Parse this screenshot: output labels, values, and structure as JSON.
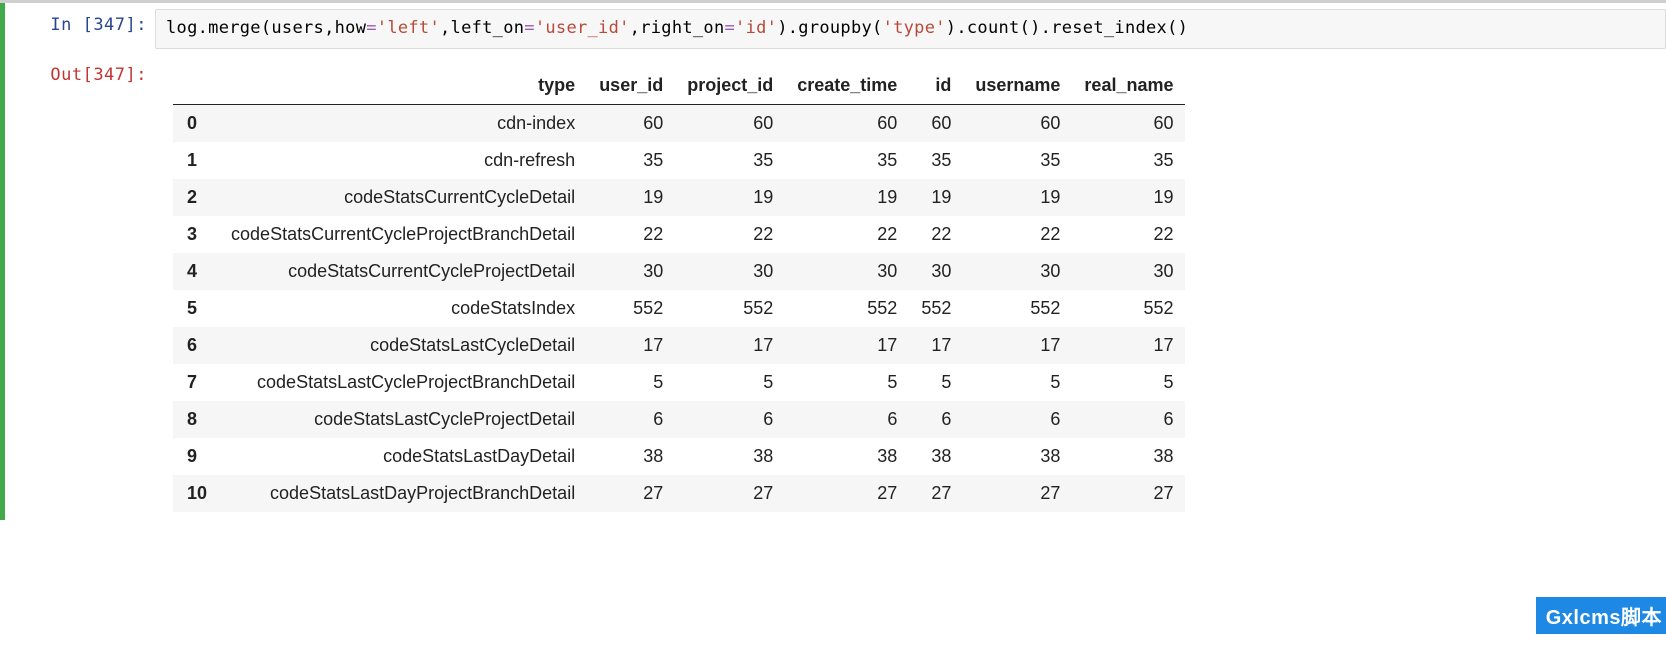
{
  "cell": {
    "exec_count": 347,
    "in_prompt": "In [347]:",
    "out_prompt": "Out[347]:",
    "code_tokens": [
      {
        "t": "log",
        "c": "code-default"
      },
      {
        "t": ".",
        "c": "code-punct"
      },
      {
        "t": "merge",
        "c": "code-default"
      },
      {
        "t": "(",
        "c": "code-punct"
      },
      {
        "t": "users",
        "c": "code-default"
      },
      {
        "t": ",",
        "c": "code-punct"
      },
      {
        "t": "how",
        "c": "code-default"
      },
      {
        "t": "=",
        "c": "code-op"
      },
      {
        "t": "'left'",
        "c": "code-str"
      },
      {
        "t": ",",
        "c": "code-punct"
      },
      {
        "t": "left_on",
        "c": "code-default"
      },
      {
        "t": "=",
        "c": "code-op"
      },
      {
        "t": "'user_id'",
        "c": "code-str"
      },
      {
        "t": ",",
        "c": "code-punct"
      },
      {
        "t": "right_on",
        "c": "code-default"
      },
      {
        "t": "=",
        "c": "code-op"
      },
      {
        "t": "'id'",
        "c": "code-str"
      },
      {
        "t": ")",
        "c": "code-punct"
      },
      {
        "t": ".",
        "c": "code-punct"
      },
      {
        "t": "groupby",
        "c": "code-default"
      },
      {
        "t": "(",
        "c": "code-punct"
      },
      {
        "t": "'type'",
        "c": "code-str"
      },
      {
        "t": ")",
        "c": "code-punct"
      },
      {
        "t": ".",
        "c": "code-punct"
      },
      {
        "t": "count",
        "c": "code-default"
      },
      {
        "t": "()",
        "c": "code-punct"
      },
      {
        "t": ".",
        "c": "code-punct"
      },
      {
        "t": "reset_index",
        "c": "code-default"
      },
      {
        "t": "()",
        "c": "code-punct"
      }
    ]
  },
  "table": {
    "type": "table",
    "columns": [
      "type",
      "user_id",
      "project_id",
      "create_time",
      "id",
      "username",
      "real_name"
    ],
    "index": [
      "0",
      "1",
      "2",
      "3",
      "4",
      "5",
      "6",
      "7",
      "8",
      "9",
      "10"
    ],
    "rows": [
      [
        "cdn-index",
        60,
        60,
        60,
        60,
        60,
        60
      ],
      [
        "cdn-refresh",
        35,
        35,
        35,
        35,
        35,
        35
      ],
      [
        "codeStatsCurrentCycleDetail",
        19,
        19,
        19,
        19,
        19,
        19
      ],
      [
        "codeStatsCurrentCycleProjectBranchDetail",
        22,
        22,
        22,
        22,
        22,
        22
      ],
      [
        "codeStatsCurrentCycleProjectDetail",
        30,
        30,
        30,
        30,
        30,
        30
      ],
      [
        "codeStatsIndex",
        552,
        552,
        552,
        552,
        552,
        552
      ],
      [
        "codeStatsLastCycleDetail",
        17,
        17,
        17,
        17,
        17,
        17
      ],
      [
        "codeStatsLastCycleProjectBranchDetail",
        5,
        5,
        5,
        5,
        5,
        5
      ],
      [
        "codeStatsLastCycleProjectDetail",
        6,
        6,
        6,
        6,
        6,
        6
      ],
      [
        "codeStatsLastDayDetail",
        38,
        38,
        38,
        38,
        38,
        38
      ],
      [
        "codeStatsLastDayProjectBranchDetail",
        27,
        27,
        27,
        27,
        27,
        27
      ]
    ],
    "header_border_color": "#222222",
    "row_even_bg": "#f6f6f6",
    "row_odd_bg": "#ffffff",
    "font_size": 18,
    "col_align": [
      "right",
      "right",
      "right",
      "right",
      "right",
      "right",
      "right"
    ]
  },
  "watermark": {
    "text": "Gxlcms脚本",
    "bg": "#1e88e5",
    "color": "#ffffff"
  },
  "accent": {
    "cell_run_border": "#42a94c",
    "input_bg": "#f7f7f7",
    "input_border": "#dcdcdc"
  }
}
